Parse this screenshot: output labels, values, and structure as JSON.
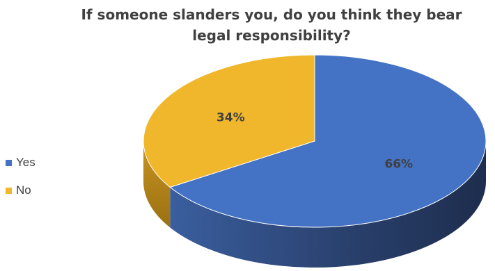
{
  "chart_data": {
    "type": "pie",
    "title": "If someone slanders you, do you think they bear legal responsibility?",
    "categories": [
      "Yes",
      "No"
    ],
    "values": [
      66,
      34
    ],
    "data_labels": [
      "66%",
      "34%"
    ],
    "colors": [
      "#4472C4",
      "#F0B72C"
    ],
    "legend_position": "left",
    "style": "3d"
  }
}
